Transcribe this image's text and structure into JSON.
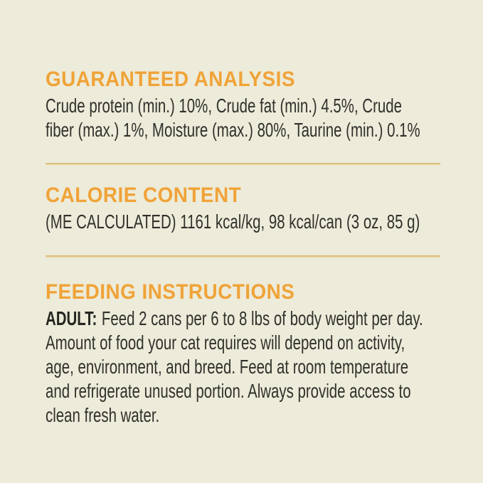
{
  "theme": {
    "bg": "#edebd9",
    "accent": "#f0a338",
    "text": "#31302b",
    "divider": "#ddb873"
  },
  "sections": [
    {
      "heading": "GUARANTEED ANALYSIS",
      "lines": [
        "Crude protein (min.) 10%, Crude fat (min.) 4.5%, Crude",
        "fiber (max.) 1%, Moisture (max.) 80%, Taurine (min.) 0.1%"
      ]
    },
    {
      "heading": "CALORIE CONTENT",
      "lines": [
        "(ME CALCULATED) 1161 kcal/kg, 98 kcal/can (3 oz, 85 g)"
      ]
    },
    {
      "heading": "FEEDING INSTRUCTIONS",
      "lead": "ADULT:",
      "lines": [
        "Feed 2 cans per 6 to 8 lbs of body weight per day.",
        "Amount of food your cat requires will depend on activity,",
        "age, environment, and breed. Feed at room temperature",
        "and refrigerate unused portion. Always provide access to",
        "clean fresh water."
      ]
    }
  ]
}
